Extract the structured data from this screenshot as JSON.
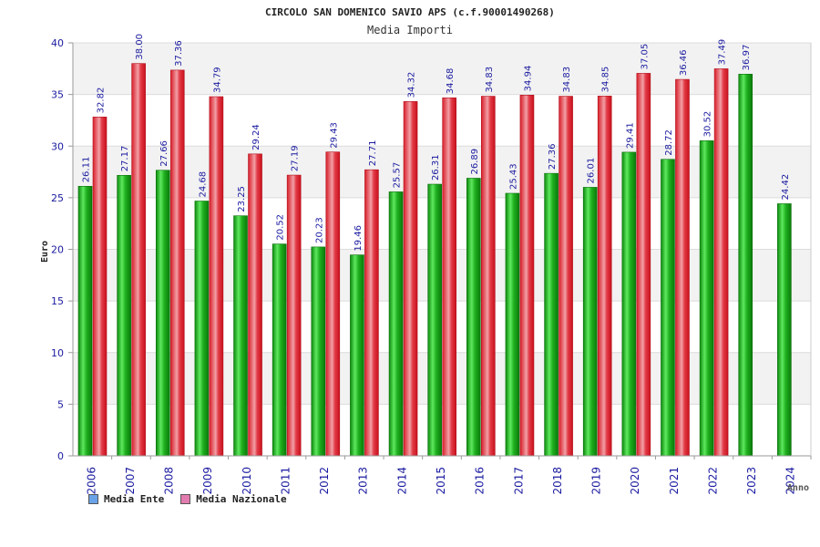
{
  "chart_data": {
    "type": "bar",
    "title": "CIRCOLO SAN DOMENICO SAVIO APS (c.f.90001490268)",
    "subtitle": "Media Importi",
    "xlabel": "Anno",
    "ylabel": "Euro",
    "ylim": [
      0,
      40
    ],
    "yticks": [
      0,
      5,
      10,
      15,
      20,
      25,
      30,
      35,
      40
    ],
    "grid": true,
    "legend_position": "bottom-left",
    "categories": [
      "2006",
      "2007",
      "2008",
      "2009",
      "2010",
      "2011",
      "2012",
      "2013",
      "2014",
      "2015",
      "2016",
      "2017",
      "2018",
      "2019",
      "2020",
      "2021",
      "2022",
      "2023",
      "2024"
    ],
    "series": [
      {
        "name": "Media Ente",
        "color": "#2db82d",
        "legend_color": "#6aa3e8",
        "values": [
          26.11,
          27.17,
          27.66,
          24.68,
          23.25,
          20.52,
          20.23,
          19.46,
          25.57,
          26.31,
          26.89,
          25.43,
          27.36,
          26.01,
          29.41,
          28.72,
          30.52,
          36.97,
          24.42
        ],
        "labels": [
          "26.11",
          "27.17",
          "27.66",
          "24.68",
          "23.25",
          "20.52",
          "20.23",
          "19.46",
          "25.57",
          "26.31",
          "26.89",
          "25.43",
          "27.36",
          "26.01",
          "29.41",
          "28.72",
          "30.52",
          "36.97",
          "24.42"
        ]
      },
      {
        "name": "Media Nazionale",
        "color": "#e03b48",
        "legend_color": "#e27cb0",
        "values": [
          32.82,
          38.0,
          37.36,
          34.79,
          29.24,
          27.19,
          29.43,
          27.71,
          34.32,
          34.68,
          34.83,
          34.94,
          34.83,
          34.85,
          37.05,
          36.46,
          37.49,
          null,
          null
        ],
        "labels": [
          "32.82",
          "38.00",
          "37.36",
          "34.79",
          "29.24",
          "27.19",
          "29.43",
          "27.71",
          "34.32",
          "34.68",
          "34.83",
          "34.94",
          "34.83",
          "34.85",
          "37.05",
          "36.46",
          "37.49",
          "",
          ""
        ]
      }
    ]
  }
}
